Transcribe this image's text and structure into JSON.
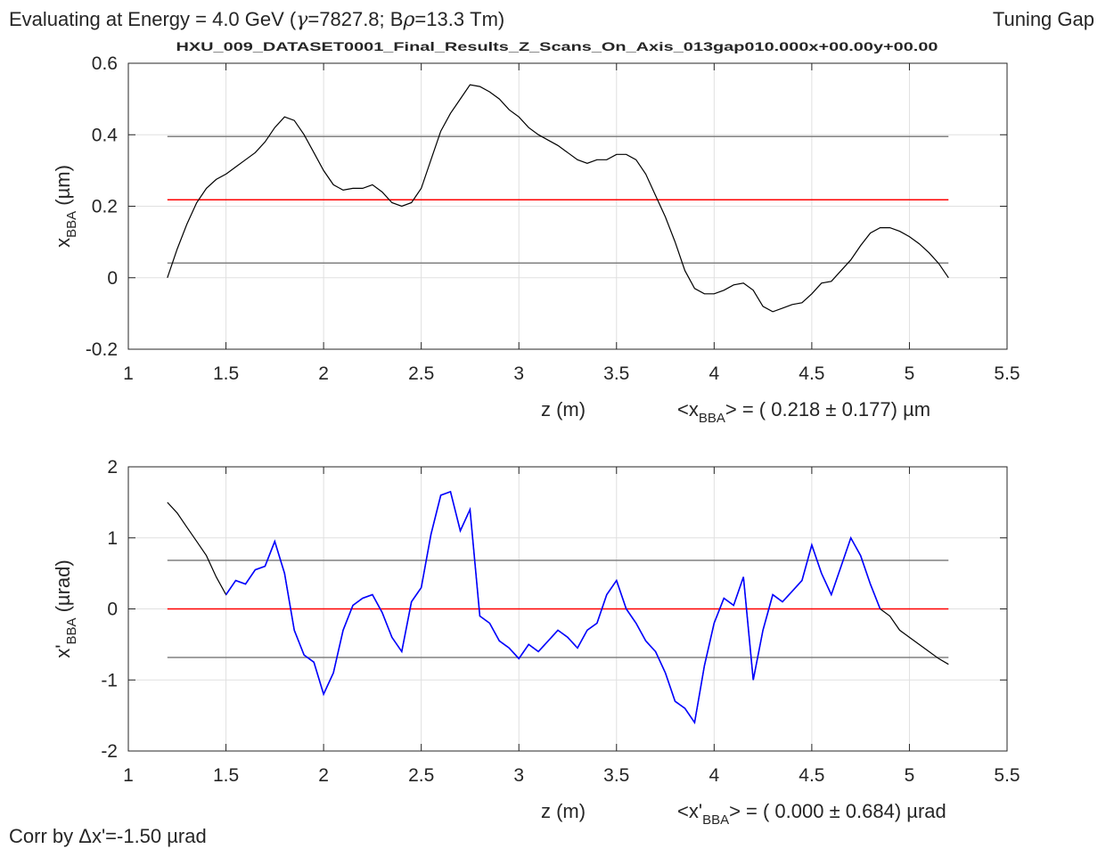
{
  "header": {
    "energy_prefix": "Evaluating at Energy =  4.0 GeV (",
    "gamma_symbol": "γ",
    "gamma_text": "=7827.8; B",
    "rho_symbol": "ρ",
    "brho_text": "=13.3 Tm)",
    "mode": "Tuning Gap",
    "dataset": "HXU_009_DATASET0001_Final_Results_Z_Scans_On_Axis_013gap010.000x+00.00y+00.00"
  },
  "footer": {
    "corr_prefix": "Corr by ",
    "corr_delta": "Δ",
    "corr_text": "x'=-1.50 µrad"
  },
  "colors": {
    "trace": "#000000",
    "measured": "#0000ff",
    "mean_line": "#ff0000",
    "band_line": "#808080",
    "grid": "#e0e0e0",
    "axis": "#262626"
  },
  "chart_data": [
    {
      "type": "line",
      "xlabel": "z (m)",
      "ylabel_main": "x",
      "ylabel_sub": "BBA",
      "ylabel_unit": " (µm)",
      "xlim": [
        1,
        5.5
      ],
      "ylim": [
        -0.2,
        0.6
      ],
      "xticks": [
        "1",
        "1.5",
        "2",
        "2.5",
        "3",
        "3.5",
        "4",
        "4.5",
        "5",
        "5.5"
      ],
      "yticks": [
        "-0.2",
        "0",
        "0.2",
        "0.4",
        "0.6"
      ],
      "grid": true,
      "stat_prefix": "<x",
      "stat_sub": "BBA",
      "stat_text": "> = (  0.218 ± 0.177) µm",
      "mean": 0.218,
      "band": [
        0.395,
        0.041
      ],
      "series": [
        {
          "x": [
            1.2,
            1.25,
            1.3,
            1.35,
            1.4,
            1.45,
            1.5,
            1.55,
            1.6,
            1.65,
            1.7,
            1.75,
            1.8,
            1.85,
            1.9,
            1.95,
            2.0,
            2.05,
            2.1,
            2.15,
            2.2,
            2.25,
            2.3,
            2.35,
            2.4,
            2.45,
            2.5,
            2.55,
            2.6,
            2.65,
            2.7,
            2.75,
            2.8,
            2.85,
            2.9,
            2.95,
            3.0,
            3.05,
            3.1,
            3.15,
            3.2,
            3.25,
            3.3,
            3.35,
            3.4,
            3.45,
            3.5,
            3.55,
            3.6,
            3.65,
            3.7,
            3.75,
            3.8,
            3.85,
            3.9,
            3.95,
            4.0,
            4.05,
            4.1,
            4.15,
            4.2,
            4.25,
            4.3,
            4.35,
            4.4,
            4.45,
            4.5,
            4.55,
            4.6,
            4.65,
            4.7,
            4.75,
            4.8,
            4.85,
            4.9,
            4.95,
            5.0,
            5.05,
            5.1,
            5.15,
            5.2
          ],
          "y": [
            0.0,
            0.08,
            0.15,
            0.21,
            0.25,
            0.275,
            0.29,
            0.31,
            0.33,
            0.35,
            0.38,
            0.42,
            0.45,
            0.44,
            0.4,
            0.35,
            0.3,
            0.26,
            0.245,
            0.25,
            0.25,
            0.26,
            0.24,
            0.21,
            0.2,
            0.21,
            0.25,
            0.33,
            0.41,
            0.46,
            0.5,
            0.54,
            0.535,
            0.52,
            0.5,
            0.47,
            0.45,
            0.42,
            0.4,
            0.385,
            0.37,
            0.35,
            0.33,
            0.32,
            0.33,
            0.33,
            0.345,
            0.345,
            0.33,
            0.29,
            0.23,
            0.17,
            0.1,
            0.02,
            -0.03,
            -0.045,
            -0.045,
            -0.035,
            -0.02,
            -0.015,
            -0.035,
            -0.08,
            -0.095,
            -0.085,
            -0.075,
            -0.07,
            -0.045,
            -0.015,
            -0.01,
            0.02,
            0.05,
            0.09,
            0.125,
            0.14,
            0.14,
            0.13,
            0.115,
            0.095,
            0.07,
            0.04,
            0.0
          ]
        }
      ]
    },
    {
      "type": "line",
      "xlabel": "z (m)",
      "ylabel_main": "x'",
      "ylabel_sub": "BBA",
      "ylabel_unit": " (µrad)",
      "xlim": [
        1,
        5.5
      ],
      "ylim": [
        -2,
        2
      ],
      "xticks": [
        "1",
        "1.5",
        "2",
        "2.5",
        "3",
        "3.5",
        "4",
        "4.5",
        "5",
        "5.5"
      ],
      "yticks": [
        "-2",
        "-1",
        "0",
        "1",
        "2"
      ],
      "grid": true,
      "stat_prefix": "<x'",
      "stat_sub": "BBA",
      "stat_text": "> = (  0.000 ± 0.684) µrad",
      "mean": 0.0,
      "band": [
        0.684,
        -0.684
      ],
      "series": [
        {
          "x": [
            1.2,
            1.25,
            1.3,
            1.35,
            1.4,
            1.45,
            1.5,
            1.55,
            1.6,
            1.65,
            1.7,
            1.75,
            1.8,
            1.85,
            1.9,
            1.95,
            2.0,
            2.05,
            2.1,
            2.15,
            2.2,
            2.25,
            2.3,
            2.35,
            2.4,
            2.45,
            2.5,
            2.55,
            2.6,
            2.65,
            2.7,
            2.75,
            2.8,
            2.85,
            2.9,
            2.95,
            3.0,
            3.05,
            3.1,
            3.15,
            3.2,
            3.25,
            3.3,
            3.35,
            3.4,
            3.45,
            3.5,
            3.55,
            3.6,
            3.65,
            3.7,
            3.75,
            3.8,
            3.85,
            3.9,
            3.95,
            4.0,
            4.05,
            4.1,
            4.15,
            4.2,
            4.25,
            4.3,
            4.35,
            4.4,
            4.45,
            4.5,
            4.55,
            4.6,
            4.65,
            4.7,
            4.75,
            4.8,
            4.85,
            4.9,
            4.95,
            5.0,
            5.05,
            5.1,
            5.15,
            5.2
          ],
          "y": [
            1.5,
            1.35,
            1.15,
            0.95,
            0.75,
            0.45,
            0.2,
            0.4,
            0.35,
            0.55,
            0.6,
            0.95,
            0.5,
            -0.3,
            -0.65,
            -0.75,
            -1.2,
            -0.9,
            -0.3,
            0.05,
            0.15,
            0.2,
            -0.05,
            -0.4,
            -0.6,
            0.1,
            0.3,
            1.05,
            1.6,
            1.65,
            1.1,
            1.4,
            -0.1,
            -0.2,
            -0.45,
            -0.55,
            -0.7,
            -0.5,
            -0.6,
            -0.45,
            -0.3,
            -0.4,
            -0.55,
            -0.3,
            -0.2,
            0.2,
            0.4,
            0.0,
            -0.2,
            -0.45,
            -0.6,
            -0.9,
            -1.3,
            -1.4,
            -1.6,
            -0.8,
            -0.2,
            0.15,
            0.05,
            0.45,
            -1.0,
            -0.3,
            0.2,
            0.1,
            0.25,
            0.4,
            0.9,
            0.5,
            0.2,
            0.6,
            1.0,
            0.75,
            0.35,
            0.0,
            -0.1,
            -0.3,
            -0.4,
            -0.5,
            -0.6,
            -0.7,
            -0.78
          ]
        }
      ]
    }
  ]
}
